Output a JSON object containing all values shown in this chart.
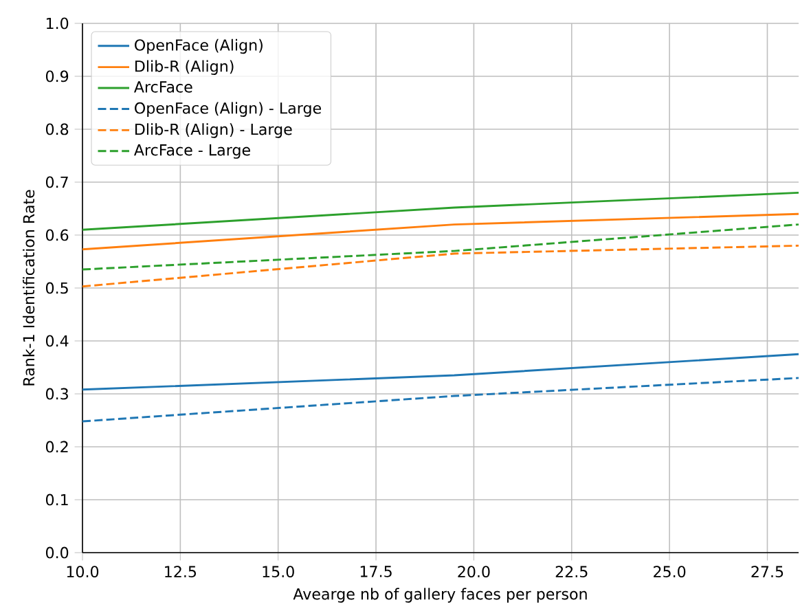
{
  "chart_data": {
    "type": "line",
    "xlabel": "Avearge nb of gallery faces per person",
    "ylabel": "Rank-1 Identification Rate",
    "x": [
      10,
      19.5,
      28.3
    ],
    "series": [
      {
        "name": "OpenFace (Align)",
        "color": "#1f77b4",
        "line_style": "solid",
        "values": [
          0.308,
          0.335,
          0.375
        ]
      },
      {
        "name": "Dlib-R (Align)",
        "color": "#ff7f0e",
        "line_style": "solid",
        "values": [
          0.573,
          0.62,
          0.64
        ]
      },
      {
        "name": "ArcFace",
        "color": "#2ca02c",
        "line_style": "solid",
        "values": [
          0.61,
          0.652,
          0.68
        ]
      },
      {
        "name": "OpenFace (Align) - Large",
        "color": "#1f77b4",
        "line_style": "dashed",
        "values": [
          0.248,
          0.296,
          0.33
        ]
      },
      {
        "name": "Dlib-R (Align) - Large",
        "color": "#ff7f0e",
        "line_style": "dashed",
        "values": [
          0.503,
          0.565,
          0.58
        ]
      },
      {
        "name": "ArcFace - Large",
        "color": "#2ca02c",
        "line_style": "dashed",
        "values": [
          0.535,
          0.57,
          0.62
        ]
      }
    ],
    "xlim": [
      10,
      28.3
    ],
    "ylim": [
      0,
      1
    ],
    "xticks": [
      {
        "value": 10,
        "label": "10.0"
      },
      12.5,
      {
        "value": 15,
        "label": "15.0"
      },
      {
        "value": 17.5,
        "label": "17.5"
      },
      {
        "value": 20,
        "label": "20.0"
      },
      22.5,
      {
        "value": 25,
        "label": "25.0"
      },
      27.5
    ],
    "yticks": [
      {
        "value": 0,
        "label": "0.0"
      },
      0.1,
      0.2,
      0.3,
      0.4,
      0.5,
      0.6,
      0.7,
      0.8,
      0.9,
      {
        "value": 1,
        "label": "1.0"
      }
    ],
    "grid": true,
    "legend": "top left",
    "marker": "none"
  }
}
